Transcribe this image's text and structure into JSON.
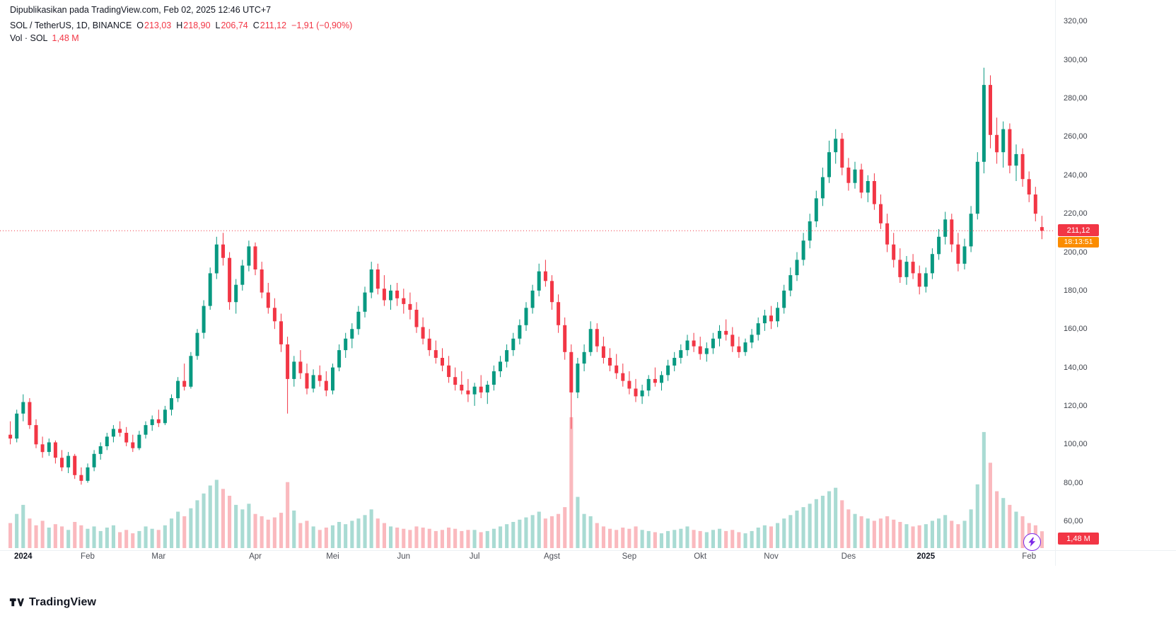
{
  "header": {
    "published_text": "Dipublikasikan pada TradingView.com, Feb 02, 2025 12:46 UTC+7"
  },
  "legend": {
    "symbol": "SOL / TetherUS, 1D, BINANCE",
    "o_label": "O",
    "o_value": "213,03",
    "h_label": "H",
    "h_value": "218,90",
    "l_label": "L",
    "l_value": "206,74",
    "c_label": "C",
    "c_value": "211,12",
    "change": "−1,91 (−0,90%)",
    "vol_label": "Vol · SOL",
    "vol_value": "1,48 M"
  },
  "price_axis": {
    "last_price_label": "211,12",
    "countdown": "18:13:51"
  },
  "volume_badge": "1,48 M",
  "footer": {
    "brand": "TradingView"
  },
  "icons": {
    "bottom_right": "lightning-bolt-icon",
    "footer": "tradingview-logo-icon"
  },
  "colors": {
    "up": "#089981",
    "down": "#F23645",
    "vol_up": "rgba(8,153,129,0.35)",
    "vol_down": "rgba(242,54,69,0.35)",
    "price_line": "#F23645",
    "price_badge_bg": "#F23645",
    "countdown_bg": "#FB8C00",
    "flash": "#7C2AE8",
    "text": "#131722"
  },
  "chart_data": {
    "type": "candlestick",
    "symbol": "SOL / TetherUS",
    "interval": "1D",
    "exchange": "BINANCE",
    "ohlc": {
      "open": 213.03,
      "high": 218.9,
      "low": 206.74,
      "close": 211.12,
      "change": -1.91,
      "change_pct": -0.9
    },
    "volume_current": "1,48 M",
    "last_price": 211.12,
    "ylim": [
      46,
      322
    ],
    "grid": false,
    "price_ticks": [
      {
        "value": 320,
        "label": "320,00"
      },
      {
        "value": 300,
        "label": "300,00"
      },
      {
        "value": 280,
        "label": "280,00"
      },
      {
        "value": 260,
        "label": "260,00"
      },
      {
        "value": 240,
        "label": "240,00"
      },
      {
        "value": 220,
        "label": "220,00"
      },
      {
        "value": 200,
        "label": "200,00"
      },
      {
        "value": 180,
        "label": "180,00"
      },
      {
        "value": 160,
        "label": "160,00"
      },
      {
        "value": 140,
        "label": "140,00"
      },
      {
        "value": 120,
        "label": "120,00"
      },
      {
        "value": 100,
        "label": "100,00"
      },
      {
        "value": 80,
        "label": "80,00"
      },
      {
        "value": 60,
        "label": "60,00"
      }
    ],
    "time_labels": [
      {
        "text": "2024",
        "i": 2,
        "major": true
      },
      {
        "text": "Feb",
        "i": 12,
        "major": false
      },
      {
        "text": "Mar",
        "i": 23,
        "major": false
      },
      {
        "text": "Apr",
        "i": 38,
        "major": false
      },
      {
        "text": "Mei",
        "i": 50,
        "major": false
      },
      {
        "text": "Jun",
        "i": 61,
        "major": false
      },
      {
        "text": "Jul",
        "i": 72,
        "major": false
      },
      {
        "text": "Agst",
        "i": 84,
        "major": false
      },
      {
        "text": "Sep",
        "i": 96,
        "major": false
      },
      {
        "text": "Okt",
        "i": 107,
        "major": false
      },
      {
        "text": "Nov",
        "i": 118,
        "major": false
      },
      {
        "text": "Des",
        "i": 130,
        "major": false
      },
      {
        "text": "2025",
        "i": 142,
        "major": true
      },
      {
        "text": "Feb",
        "i": 158,
        "major": false
      }
    ],
    "candles": [
      [
        105,
        112,
        100,
        103,
        2.2
      ],
      [
        103,
        118,
        101,
        116,
        3.0
      ],
      [
        116,
        126,
        112,
        122,
        3.8
      ],
      [
        122,
        124,
        108,
        110,
        2.6
      ],
      [
        110,
        113,
        98,
        100,
        2.0
      ],
      [
        100,
        104,
        93,
        96,
        2.4
      ],
      [
        96,
        103,
        94,
        101,
        1.8
      ],
      [
        101,
        102,
        90,
        93,
        2.1
      ],
      [
        93,
        97,
        86,
        88,
        1.9
      ],
      [
        88,
        96,
        85,
        94,
        1.6
      ],
      [
        94,
        95,
        82,
        84,
        2.3
      ],
      [
        84,
        88,
        79,
        81,
        2.0
      ],
      [
        81,
        90,
        80,
        88,
        1.7
      ],
      [
        88,
        97,
        86,
        95,
        1.9
      ],
      [
        95,
        101,
        92,
        99,
        1.5
      ],
      [
        99,
        106,
        97,
        104,
        1.8
      ],
      [
        104,
        110,
        101,
        108,
        2.0
      ],
      [
        108,
        112,
        104,
        106,
        1.4
      ],
      [
        106,
        109,
        99,
        101,
        1.6
      ],
      [
        101,
        105,
        96,
        98,
        1.3
      ],
      [
        98,
        107,
        97,
        105,
        1.5
      ],
      [
        105,
        112,
        103,
        110,
        1.9
      ],
      [
        110,
        115,
        107,
        113,
        1.7
      ],
      [
        113,
        118,
        109,
        111,
        1.6
      ],
      [
        111,
        120,
        110,
        118,
        2.0
      ],
      [
        118,
        126,
        115,
        124,
        2.6
      ],
      [
        124,
        135,
        122,
        133,
        3.2
      ],
      [
        133,
        142,
        128,
        130,
        2.8
      ],
      [
        130,
        148,
        129,
        146,
        3.5
      ],
      [
        146,
        160,
        144,
        158,
        4.2
      ],
      [
        158,
        175,
        155,
        172,
        4.8
      ],
      [
        172,
        192,
        170,
        189,
        5.5
      ],
      [
        189,
        208,
        186,
        204,
        6.0
      ],
      [
        204,
        210,
        193,
        197,
        5.2
      ],
      [
        197,
        200,
        170,
        174,
        4.6
      ],
      [
        174,
        186,
        168,
        183,
        3.8
      ],
      [
        183,
        196,
        180,
        193,
        3.4
      ],
      [
        193,
        206,
        190,
        203,
        3.9
      ],
      [
        203,
        205,
        188,
        191,
        3.0
      ],
      [
        191,
        195,
        176,
        179,
        2.8
      ],
      [
        179,
        184,
        168,
        171,
        2.5
      ],
      [
        171,
        176,
        160,
        164,
        2.7
      ],
      [
        164,
        168,
        148,
        152,
        3.1
      ],
      [
        152,
        156,
        116,
        134,
        5.8
      ],
      [
        134,
        146,
        130,
        143,
        3.3
      ],
      [
        143,
        149,
        134,
        137,
        2.2
      ],
      [
        137,
        142,
        126,
        129,
        2.4
      ],
      [
        129,
        139,
        127,
        136,
        1.9
      ],
      [
        136,
        141,
        130,
        133,
        1.6
      ],
      [
        133,
        138,
        125,
        128,
        1.8
      ],
      [
        128,
        142,
        126,
        140,
        2.0
      ],
      [
        140,
        152,
        138,
        149,
        2.3
      ],
      [
        149,
        158,
        145,
        155,
        2.1
      ],
      [
        155,
        163,
        150,
        160,
        2.4
      ],
      [
        160,
        172,
        157,
        169,
        2.6
      ],
      [
        169,
        182,
        166,
        179,
        2.9
      ],
      [
        179,
        195,
        176,
        191,
        3.4
      ],
      [
        191,
        194,
        178,
        181,
        2.6
      ],
      [
        181,
        188,
        172,
        175,
        2.2
      ],
      [
        175,
        183,
        170,
        180,
        1.9
      ],
      [
        180,
        184,
        172,
        176,
        1.8
      ],
      [
        176,
        181,
        168,
        173,
        1.7
      ],
      [
        173,
        179,
        165,
        170,
        1.6
      ],
      [
        170,
        174,
        158,
        161,
        1.9
      ],
      [
        161,
        166,
        152,
        155,
        1.8
      ],
      [
        155,
        160,
        146,
        149,
        1.7
      ],
      [
        149,
        154,
        142,
        145,
        1.5
      ],
      [
        145,
        150,
        138,
        141,
        1.6
      ],
      [
        141,
        146,
        132,
        135,
        1.8
      ],
      [
        135,
        140,
        128,
        131,
        1.7
      ],
      [
        131,
        138,
        126,
        128,
        1.5
      ],
      [
        128,
        134,
        122,
        126,
        1.6
      ],
      [
        126,
        132,
        120,
        130,
        1.6
      ],
      [
        130,
        136,
        124,
        127,
        1.4
      ],
      [
        127,
        133,
        121,
        131,
        1.5
      ],
      [
        131,
        141,
        128,
        138,
        1.7
      ],
      [
        138,
        146,
        135,
        143,
        1.9
      ],
      [
        143,
        152,
        140,
        149,
        2.1
      ],
      [
        149,
        158,
        146,
        155,
        2.3
      ],
      [
        155,
        165,
        152,
        162,
        2.5
      ],
      [
        162,
        174,
        159,
        171,
        2.7
      ],
      [
        171,
        183,
        168,
        180,
        2.9
      ],
      [
        180,
        194,
        177,
        190,
        3.2
      ],
      [
        190,
        196,
        182,
        185,
        2.6
      ],
      [
        185,
        188,
        170,
        174,
        2.8
      ],
      [
        174,
        178,
        158,
        162,
        3.0
      ],
      [
        162,
        166,
        144,
        148,
        3.6
      ],
      [
        148,
        152,
        108,
        127,
        11.5
      ],
      [
        127,
        145,
        124,
        142,
        4.5
      ],
      [
        142,
        152,
        138,
        148,
        3.0
      ],
      [
        148,
        164,
        146,
        160,
        2.8
      ],
      [
        160,
        163,
        148,
        151,
        2.2
      ],
      [
        151,
        156,
        142,
        145,
        1.9
      ],
      [
        145,
        150,
        138,
        141,
        1.7
      ],
      [
        141,
        147,
        134,
        137,
        1.6
      ],
      [
        137,
        142,
        130,
        133,
        1.8
      ],
      [
        133,
        138,
        126,
        129,
        1.7
      ],
      [
        129,
        134,
        122,
        125,
        1.9
      ],
      [
        125,
        131,
        121,
        128,
        1.6
      ],
      [
        128,
        136,
        125,
        134,
        1.5
      ],
      [
        134,
        140,
        130,
        132,
        1.4
      ],
      [
        132,
        138,
        128,
        136,
        1.3
      ],
      [
        136,
        144,
        133,
        141,
        1.5
      ],
      [
        141,
        148,
        138,
        145,
        1.6
      ],
      [
        145,
        152,
        142,
        149,
        1.7
      ],
      [
        149,
        157,
        146,
        154,
        1.9
      ],
      [
        154,
        158,
        148,
        151,
        1.6
      ],
      [
        151,
        156,
        144,
        147,
        1.5
      ],
      [
        147,
        153,
        143,
        150,
        1.4
      ],
      [
        150,
        158,
        147,
        155,
        1.6
      ],
      [
        155,
        162,
        151,
        159,
        1.7
      ],
      [
        159,
        165,
        154,
        157,
        1.5
      ],
      [
        157,
        161,
        148,
        151,
        1.6
      ],
      [
        151,
        156,
        145,
        148,
        1.4
      ],
      [
        148,
        155,
        146,
        153,
        1.3
      ],
      [
        153,
        160,
        150,
        157,
        1.5
      ],
      [
        157,
        166,
        154,
        163,
        1.8
      ],
      [
        163,
        170,
        159,
        167,
        2.0
      ],
      [
        167,
        172,
        160,
        164,
        1.9
      ],
      [
        164,
        174,
        161,
        171,
        2.2
      ],
      [
        171,
        183,
        168,
        180,
        2.6
      ],
      [
        180,
        192,
        177,
        188,
        2.9
      ],
      [
        188,
        200,
        185,
        196,
        3.3
      ],
      [
        196,
        210,
        193,
        206,
        3.6
      ],
      [
        206,
        220,
        202,
        216,
        3.9
      ],
      [
        216,
        232,
        213,
        228,
        4.3
      ],
      [
        228,
        244,
        224,
        239,
        4.6
      ],
      [
        239,
        258,
        236,
        252,
        5.0
      ],
      [
        252,
        264,
        246,
        259,
        5.3
      ],
      [
        259,
        262,
        240,
        244,
        4.2
      ],
      [
        244,
        249,
        232,
        236,
        3.4
      ],
      [
        236,
        247,
        233,
        243,
        3.0
      ],
      [
        243,
        246,
        228,
        231,
        2.8
      ],
      [
        231,
        240,
        226,
        237,
        2.6
      ],
      [
        237,
        241,
        222,
        225,
        2.4
      ],
      [
        225,
        230,
        212,
        215,
        2.6
      ],
      [
        215,
        220,
        200,
        204,
        2.8
      ],
      [
        204,
        210,
        192,
        196,
        2.5
      ],
      [
        196,
        202,
        184,
        187,
        2.3
      ],
      [
        187,
        198,
        183,
        195,
        2.1
      ],
      [
        195,
        199,
        186,
        189,
        1.9
      ],
      [
        189,
        193,
        178,
        182,
        2.0
      ],
      [
        182,
        192,
        179,
        189,
        2.1
      ],
      [
        189,
        202,
        186,
        199,
        2.4
      ],
      [
        199,
        212,
        196,
        208,
        2.6
      ],
      [
        208,
        221,
        204,
        217,
        2.9
      ],
      [
        217,
        220,
        200,
        204,
        2.4
      ],
      [
        204,
        210,
        190,
        194,
        2.1
      ],
      [
        194,
        207,
        191,
        203,
        2.4
      ],
      [
        203,
        224,
        200,
        220,
        3.4
      ],
      [
        220,
        252,
        217,
        247,
        5.6
      ],
      [
        247,
        296,
        241,
        287,
        10.2
      ],
      [
        287,
        292,
        254,
        261,
        7.5
      ],
      [
        261,
        270,
        246,
        252,
        5.0
      ],
      [
        252,
        268,
        244,
        264,
        4.4
      ],
      [
        264,
        267,
        241,
        245,
        3.8
      ],
      [
        245,
        256,
        237,
        251,
        3.2
      ],
      [
        251,
        254,
        234,
        238,
        2.8
      ],
      [
        238,
        242,
        226,
        230,
        2.2
      ],
      [
        230,
        234,
        216,
        220,
        2.0
      ],
      [
        213.03,
        218.9,
        206.74,
        211.12,
        1.48
      ]
    ]
  }
}
